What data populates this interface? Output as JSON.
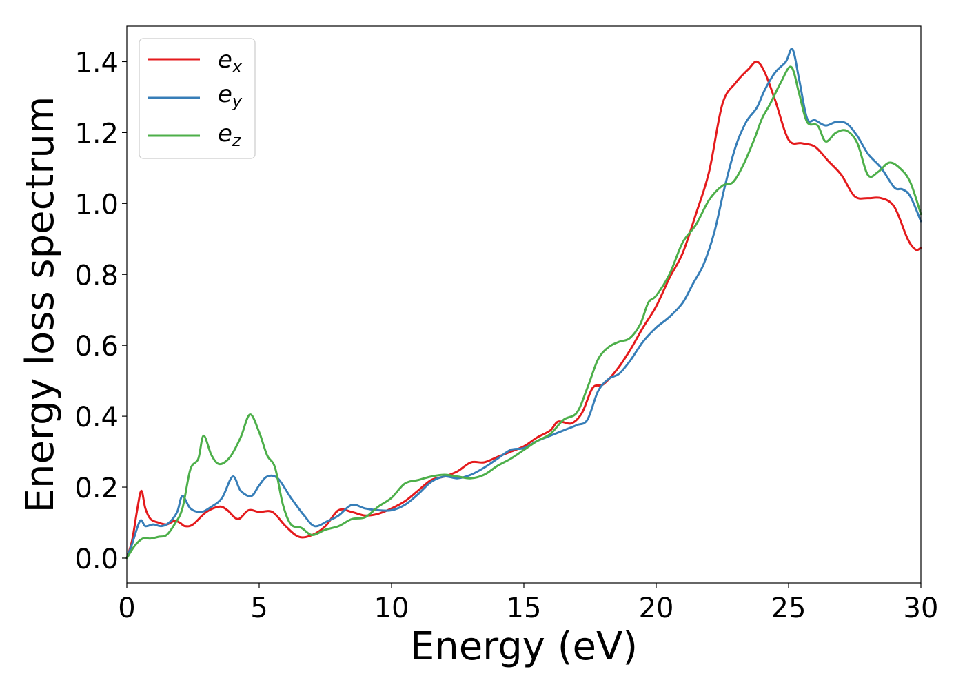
{
  "chart_data": {
    "type": "line",
    "title": "",
    "xlabel": "Energy (eV)",
    "ylabel": "Energy loss spectrum",
    "xlim": [
      0,
      30
    ],
    "ylim": [
      -0.07,
      1.5
    ],
    "xticks": [
      0,
      5,
      10,
      15,
      20,
      25,
      30
    ],
    "yticks": [
      0.0,
      0.2,
      0.4,
      0.6,
      0.8,
      1.0,
      1.2,
      1.4
    ],
    "xtick_labels": [
      "0",
      "5",
      "10",
      "15",
      "20",
      "25",
      "30"
    ],
    "ytick_labels": [
      "0.0",
      "0.2",
      "0.4",
      "0.6",
      "0.8",
      "1.0",
      "1.2",
      "1.4"
    ],
    "grid": false,
    "legend_position": "top-left",
    "series": [
      {
        "name": "e_x",
        "legend_base": "e",
        "legend_sub": "x",
        "color": "#e41a1c",
        "points": [
          [
            0,
            0
          ],
          [
            0.2,
            0.05
          ],
          [
            0.4,
            0.14
          ],
          [
            0.55,
            0.19
          ],
          [
            0.7,
            0.14
          ],
          [
            0.9,
            0.11
          ],
          [
            1.2,
            0.1
          ],
          [
            1.5,
            0.095
          ],
          [
            1.8,
            0.105
          ],
          [
            2.0,
            0.1
          ],
          [
            2.2,
            0.09
          ],
          [
            2.5,
            0.095
          ],
          [
            3.0,
            0.13
          ],
          [
            3.5,
            0.145
          ],
          [
            3.8,
            0.135
          ],
          [
            4.2,
            0.11
          ],
          [
            4.6,
            0.135
          ],
          [
            5.0,
            0.13
          ],
          [
            5.5,
            0.13
          ],
          [
            6.0,
            0.09
          ],
          [
            6.5,
            0.06
          ],
          [
            7.0,
            0.065
          ],
          [
            7.5,
            0.09
          ],
          [
            8.0,
            0.135
          ],
          [
            8.5,
            0.13
          ],
          [
            9.0,
            0.12
          ],
          [
            9.5,
            0.125
          ],
          [
            10.0,
            0.14
          ],
          [
            10.5,
            0.16
          ],
          [
            11.0,
            0.19
          ],
          [
            11.5,
            0.22
          ],
          [
            12.0,
            0.23
          ],
          [
            12.5,
            0.245
          ],
          [
            13.0,
            0.27
          ],
          [
            13.5,
            0.27
          ],
          [
            14.0,
            0.285
          ],
          [
            14.5,
            0.3
          ],
          [
            15.0,
            0.315
          ],
          [
            15.5,
            0.34
          ],
          [
            16.0,
            0.36
          ],
          [
            16.3,
            0.385
          ],
          [
            16.8,
            0.38
          ],
          [
            17.2,
            0.41
          ],
          [
            17.6,
            0.48
          ],
          [
            18.0,
            0.49
          ],
          [
            18.5,
            0.53
          ],
          [
            19.0,
            0.585
          ],
          [
            19.5,
            0.65
          ],
          [
            20.0,
            0.71
          ],
          [
            20.5,
            0.79
          ],
          [
            21.0,
            0.86
          ],
          [
            21.5,
            0.97
          ],
          [
            22.0,
            1.09
          ],
          [
            22.5,
            1.28
          ],
          [
            23.0,
            1.34
          ],
          [
            23.5,
            1.38
          ],
          [
            23.8,
            1.4
          ],
          [
            24.1,
            1.37
          ],
          [
            24.5,
            1.29
          ],
          [
            25.0,
            1.18
          ],
          [
            25.5,
            1.17
          ],
          [
            26.0,
            1.16
          ],
          [
            26.5,
            1.12
          ],
          [
            27.0,
            1.08
          ],
          [
            27.5,
            1.02
          ],
          [
            28.0,
            1.015
          ],
          [
            28.5,
            1.015
          ],
          [
            29.0,
            0.99
          ],
          [
            29.5,
            0.9
          ],
          [
            29.8,
            0.87
          ],
          [
            30.0,
            0.875
          ]
        ]
      },
      {
        "name": "e_y",
        "legend_base": "e",
        "legend_sub": "y",
        "color": "#377eb8",
        "points": [
          [
            0,
            0
          ],
          [
            0.2,
            0.04
          ],
          [
            0.5,
            0.105
          ],
          [
            0.7,
            0.09
          ],
          [
            1.0,
            0.095
          ],
          [
            1.3,
            0.09
          ],
          [
            1.6,
            0.1
          ],
          [
            1.9,
            0.13
          ],
          [
            2.1,
            0.175
          ],
          [
            2.4,
            0.14
          ],
          [
            2.8,
            0.13
          ],
          [
            3.2,
            0.145
          ],
          [
            3.6,
            0.17
          ],
          [
            4.0,
            0.23
          ],
          [
            4.3,
            0.19
          ],
          [
            4.7,
            0.175
          ],
          [
            5.0,
            0.205
          ],
          [
            5.3,
            0.23
          ],
          [
            5.7,
            0.225
          ],
          [
            6.2,
            0.17
          ],
          [
            6.7,
            0.12
          ],
          [
            7.1,
            0.09
          ],
          [
            7.6,
            0.105
          ],
          [
            8.0,
            0.12
          ],
          [
            8.5,
            0.15
          ],
          [
            9.0,
            0.14
          ],
          [
            9.5,
            0.135
          ],
          [
            10.0,
            0.135
          ],
          [
            10.5,
            0.15
          ],
          [
            11.0,
            0.18
          ],
          [
            11.5,
            0.215
          ],
          [
            12.0,
            0.23
          ],
          [
            12.5,
            0.225
          ],
          [
            13.0,
            0.235
          ],
          [
            13.5,
            0.255
          ],
          [
            14.0,
            0.28
          ],
          [
            14.5,
            0.305
          ],
          [
            15.0,
            0.31
          ],
          [
            15.5,
            0.33
          ],
          [
            16.0,
            0.345
          ],
          [
            16.5,
            0.36
          ],
          [
            17.0,
            0.375
          ],
          [
            17.4,
            0.39
          ],
          [
            17.8,
            0.47
          ],
          [
            18.2,
            0.505
          ],
          [
            18.6,
            0.52
          ],
          [
            19.0,
            0.555
          ],
          [
            19.5,
            0.61
          ],
          [
            20.0,
            0.65
          ],
          [
            20.5,
            0.68
          ],
          [
            21.0,
            0.72
          ],
          [
            21.4,
            0.775
          ],
          [
            21.8,
            0.83
          ],
          [
            22.2,
            0.92
          ],
          [
            22.6,
            1.05
          ],
          [
            23.0,
            1.16
          ],
          [
            23.4,
            1.23
          ],
          [
            23.8,
            1.27
          ],
          [
            24.1,
            1.32
          ],
          [
            24.5,
            1.37
          ],
          [
            24.9,
            1.4
          ],
          [
            25.15,
            1.435
          ],
          [
            25.4,
            1.35
          ],
          [
            25.7,
            1.24
          ],
          [
            26.0,
            1.235
          ],
          [
            26.4,
            1.22
          ],
          [
            26.8,
            1.23
          ],
          [
            27.2,
            1.225
          ],
          [
            27.6,
            1.19
          ],
          [
            28.0,
            1.14
          ],
          [
            28.5,
            1.1
          ],
          [
            29.0,
            1.045
          ],
          [
            29.3,
            1.04
          ],
          [
            29.6,
            1.02
          ],
          [
            30.0,
            0.95
          ]
        ]
      },
      {
        "name": "e_z",
        "legend_base": "e",
        "legend_sub": "z",
        "color": "#4daf4a",
        "points": [
          [
            0,
            0
          ],
          [
            0.3,
            0.035
          ],
          [
            0.6,
            0.055
          ],
          [
            0.9,
            0.055
          ],
          [
            1.2,
            0.06
          ],
          [
            1.5,
            0.065
          ],
          [
            1.8,
            0.095
          ],
          [
            2.1,
            0.14
          ],
          [
            2.4,
            0.25
          ],
          [
            2.7,
            0.28
          ],
          [
            2.9,
            0.345
          ],
          [
            3.2,
            0.29
          ],
          [
            3.5,
            0.265
          ],
          [
            3.9,
            0.285
          ],
          [
            4.3,
            0.34
          ],
          [
            4.65,
            0.405
          ],
          [
            5.0,
            0.355
          ],
          [
            5.3,
            0.29
          ],
          [
            5.6,
            0.255
          ],
          [
            5.9,
            0.15
          ],
          [
            6.2,
            0.095
          ],
          [
            6.6,
            0.085
          ],
          [
            7.0,
            0.065
          ],
          [
            7.5,
            0.08
          ],
          [
            8.0,
            0.09
          ],
          [
            8.5,
            0.11
          ],
          [
            9.0,
            0.115
          ],
          [
            9.5,
            0.145
          ],
          [
            10.0,
            0.17
          ],
          [
            10.5,
            0.21
          ],
          [
            11.0,
            0.22
          ],
          [
            11.5,
            0.23
          ],
          [
            12.0,
            0.235
          ],
          [
            12.5,
            0.23
          ],
          [
            13.0,
            0.225
          ],
          [
            13.5,
            0.235
          ],
          [
            14.0,
            0.26
          ],
          [
            14.5,
            0.28
          ],
          [
            15.0,
            0.305
          ],
          [
            15.5,
            0.33
          ],
          [
            16.0,
            0.35
          ],
          [
            16.5,
            0.39
          ],
          [
            17.0,
            0.41
          ],
          [
            17.4,
            0.48
          ],
          [
            17.8,
            0.56
          ],
          [
            18.2,
            0.595
          ],
          [
            18.6,
            0.61
          ],
          [
            19.0,
            0.62
          ],
          [
            19.4,
            0.66
          ],
          [
            19.7,
            0.72
          ],
          [
            20.0,
            0.74
          ],
          [
            20.5,
            0.8
          ],
          [
            21.0,
            0.89
          ],
          [
            21.5,
            0.94
          ],
          [
            22.0,
            1.01
          ],
          [
            22.5,
            1.05
          ],
          [
            22.9,
            1.06
          ],
          [
            23.3,
            1.11
          ],
          [
            23.7,
            1.18
          ],
          [
            24.0,
            1.24
          ],
          [
            24.3,
            1.28
          ],
          [
            24.7,
            1.34
          ],
          [
            25.1,
            1.385
          ],
          [
            25.4,
            1.31
          ],
          [
            25.7,
            1.23
          ],
          [
            26.1,
            1.22
          ],
          [
            26.4,
            1.175
          ],
          [
            26.8,
            1.2
          ],
          [
            27.2,
            1.205
          ],
          [
            27.6,
            1.17
          ],
          [
            28.0,
            1.08
          ],
          [
            28.4,
            1.09
          ],
          [
            28.8,
            1.115
          ],
          [
            29.2,
            1.1
          ],
          [
            29.6,
            1.06
          ],
          [
            30.0,
            0.97
          ]
        ]
      }
    ]
  }
}
